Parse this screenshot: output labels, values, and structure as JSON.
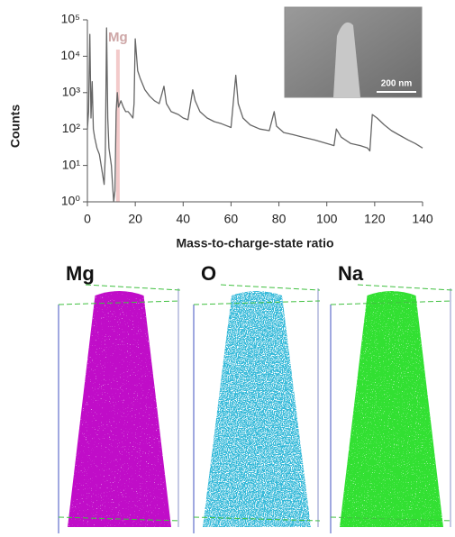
{
  "chart_data": {
    "type": "line",
    "xlabel": "Mass-to-charge-state ratio",
    "ylabel": "Counts",
    "xlim": [
      0,
      140
    ],
    "xticks": [
      0,
      20,
      40,
      60,
      80,
      100,
      120,
      140
    ],
    "ylim": [
      1,
      100000
    ],
    "log_y": true,
    "yticks": [
      {
        "value": 1,
        "label": "10⁰"
      },
      {
        "value": 10,
        "label": "10¹"
      },
      {
        "value": 100,
        "label": "10²"
      },
      {
        "value": 1000,
        "label": "10³"
      },
      {
        "value": 10000,
        "label": "10⁴"
      },
      {
        "value": 100000,
        "label": "10⁵"
      }
    ],
    "color": "#666666",
    "x": [
      0,
      0.5,
      1,
      1.5,
      2,
      2.5,
      3,
      4,
      5,
      6,
      7,
      7.5,
      8,
      8.5,
      9,
      10,
      10.5,
      11,
      11.5,
      12,
      12.5,
      13,
      14,
      15,
      16,
      17,
      18,
      19,
      19.5,
      20,
      21,
      22,
      24,
      26,
      28,
      30,
      32,
      33,
      35,
      38,
      40,
      42,
      44,
      45,
      47,
      50,
      53,
      56,
      60,
      62,
      63,
      65,
      68,
      72,
      76,
      78,
      79,
      82,
      86,
      90,
      95,
      100,
      103,
      104,
      106,
      110,
      114,
      117,
      118,
      119,
      121,
      124,
      127,
      130,
      134,
      137,
      140
    ],
    "values": [
      100,
      300,
      40000,
      200,
      2000,
      100,
      60,
      30,
      20,
      8,
      3,
      20,
      60000,
      200,
      30,
      10,
      3,
      1,
      2,
      300,
      1000,
      400,
      600,
      400,
      300,
      300,
      250,
      200,
      500,
      30000,
      4000,
      2500,
      1200,
      800,
      600,
      500,
      1500,
      500,
      300,
      250,
      200,
      180,
      1200,
      600,
      300,
      200,
      160,
      140,
      110,
      3000,
      500,
      200,
      130,
      100,
      90,
      300,
      120,
      80,
      70,
      60,
      50,
      40,
      35,
      100,
      60,
      40,
      35,
      30,
      25,
      250,
      200,
      130,
      90,
      70,
      50,
      40,
      30
    ],
    "annotations": [
      {
        "text": "Mg",
        "x_range": [
          12,
          13.5
        ],
        "color": "#f2c4c4"
      }
    ]
  },
  "inset": {
    "scale_label": "200 nm"
  },
  "atom_maps": [
    {
      "label": "Mg",
      "color": "#c010c8"
    },
    {
      "label": "O",
      "color": "#30b8d8"
    },
    {
      "label": "Na",
      "color": "#30e030"
    }
  ]
}
